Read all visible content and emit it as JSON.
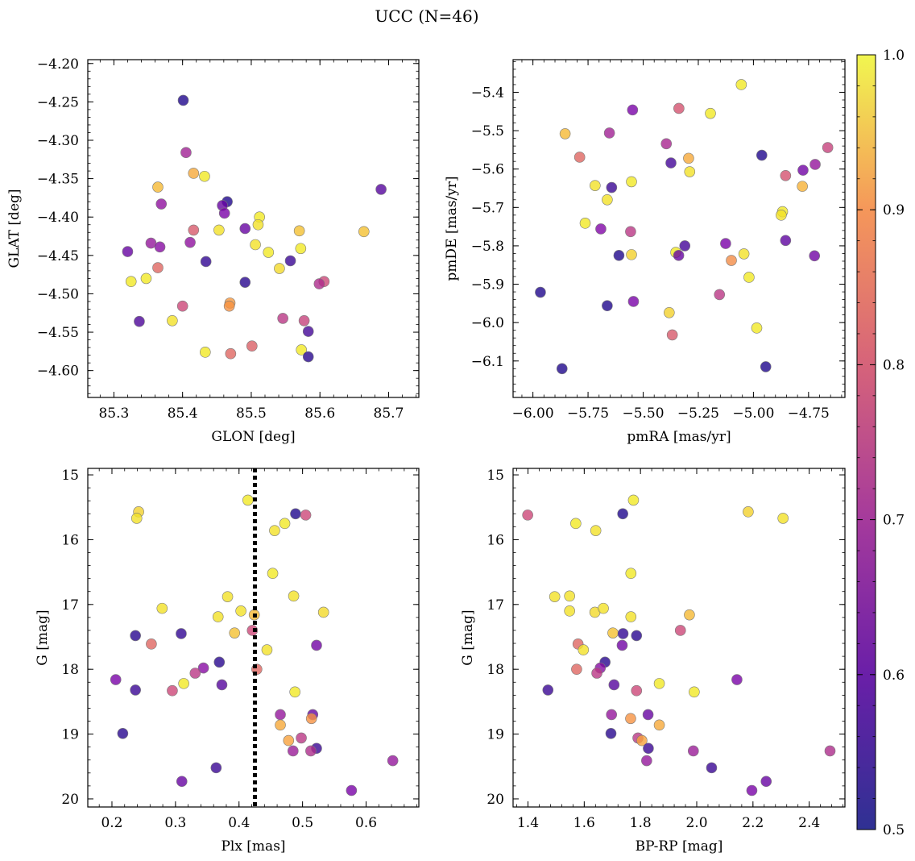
{
  "figure": {
    "title": "UCC (N=46)"
  },
  "colorbar": {
    "range": [
      0.5,
      1.0
    ],
    "ticks": [
      0.5,
      0.6,
      0.7,
      0.8,
      0.9,
      1.0
    ],
    "tick_labels": [
      "0.5",
      "0.6",
      "0.7",
      "0.8",
      "0.9",
      "1.0"
    ],
    "colormap": "plasma"
  },
  "chart_data": [
    {
      "type": "scatter",
      "xlabel": "GLON [deg]",
      "ylabel": "GLAT [deg]",
      "xlim": [
        85.262,
        85.744
      ],
      "ylim": [
        -4.635,
        -4.195
      ],
      "xticks": [
        85.3,
        85.4,
        85.5,
        85.6,
        85.7
      ],
      "xtick_labels": [
        "85.3",
        "85.4",
        "85.5",
        "85.6",
        "85.7"
      ],
      "yticks": [
        -4.2,
        -4.25,
        -4.3,
        -4.35,
        -4.4,
        -4.45,
        -4.5,
        -4.55,
        -4.6
      ],
      "ytick_labels": [
        "−4.20",
        "−4.25",
        "−4.30",
        "−4.35",
        "−4.40",
        "−4.45",
        "−4.50",
        "−4.55",
        "−4.60"
      ],
      "grid": false,
      "points": [
        {
          "x": 85.401,
          "y": -4.248,
          "c": 0.52
        },
        {
          "x": 85.405,
          "y": -4.316,
          "c": 0.68
        },
        {
          "x": 85.416,
          "y": -4.343,
          "c": 0.9
        },
        {
          "x": 85.432,
          "y": -4.347,
          "c": 0.98
        },
        {
          "x": 85.364,
          "y": -4.361,
          "c": 0.92
        },
        {
          "x": 85.689,
          "y": -4.364,
          "c": 0.58
        },
        {
          "x": 85.369,
          "y": -4.383,
          "c": 0.65
        },
        {
          "x": 85.465,
          "y": -4.38,
          "c": 0.52
        },
        {
          "x": 85.458,
          "y": -4.385,
          "c": 0.6
        },
        {
          "x": 85.461,
          "y": -4.395,
          "c": 0.62
        },
        {
          "x": 85.512,
          "y": -4.4,
          "c": 0.98
        },
        {
          "x": 85.51,
          "y": -4.41,
          "c": 0.97
        },
        {
          "x": 85.416,
          "y": -4.417,
          "c": 0.78
        },
        {
          "x": 85.453,
          "y": -4.417,
          "c": 0.97
        },
        {
          "x": 85.491,
          "y": -4.415,
          "c": 0.6
        },
        {
          "x": 85.57,
          "y": -4.418,
          "c": 0.93
        },
        {
          "x": 85.664,
          "y": -4.419,
          "c": 0.93
        },
        {
          "x": 85.411,
          "y": -4.433,
          "c": 0.65
        },
        {
          "x": 85.354,
          "y": -4.434,
          "c": 0.66
        },
        {
          "x": 85.367,
          "y": -4.439,
          "c": 0.64
        },
        {
          "x": 85.506,
          "y": -4.436,
          "c": 0.97
        },
        {
          "x": 85.572,
          "y": -4.441,
          "c": 0.98
        },
        {
          "x": 85.32,
          "y": -4.445,
          "c": 0.6
        },
        {
          "x": 85.525,
          "y": -4.446,
          "c": 0.98
        },
        {
          "x": 85.434,
          "y": -4.458,
          "c": 0.54
        },
        {
          "x": 85.557,
          "y": -4.457,
          "c": 0.55
        },
        {
          "x": 85.364,
          "y": -4.466,
          "c": 0.8
        },
        {
          "x": 85.541,
          "y": -4.467,
          "c": 0.96
        },
        {
          "x": 85.347,
          "y": -4.48,
          "c": 0.98
        },
        {
          "x": 85.325,
          "y": -4.484,
          "c": 0.98
        },
        {
          "x": 85.491,
          "y": -4.485,
          "c": 0.53
        },
        {
          "x": 85.606,
          "y": -4.484,
          "c": 0.75
        },
        {
          "x": 85.599,
          "y": -4.487,
          "c": 0.7
        },
        {
          "x": 85.469,
          "y": -4.512,
          "c": 0.88
        },
        {
          "x": 85.468,
          "y": -4.516,
          "c": 0.87
        },
        {
          "x": 85.4,
          "y": -4.516,
          "c": 0.75
        },
        {
          "x": 85.546,
          "y": -4.532,
          "c": 0.72
        },
        {
          "x": 85.577,
          "y": -4.535,
          "c": 0.74
        },
        {
          "x": 85.337,
          "y": -4.536,
          "c": 0.57
        },
        {
          "x": 85.385,
          "y": -4.535,
          "c": 0.97
        },
        {
          "x": 85.583,
          "y": -4.549,
          "c": 0.56
        },
        {
          "x": 85.501,
          "y": -4.568,
          "c": 0.79
        },
        {
          "x": 85.573,
          "y": -4.573,
          "c": 0.98
        },
        {
          "x": 85.433,
          "y": -4.576,
          "c": 0.98
        },
        {
          "x": 85.47,
          "y": -4.578,
          "c": 0.8
        },
        {
          "x": 85.583,
          "y": -4.582,
          "c": 0.53
        }
      ]
    },
    {
      "type": "scatter",
      "xlabel": "pmRA [mas/yr]",
      "ylabel": "pmDE [mas/yr]",
      "xlim": [
        -6.09,
        -4.585
      ],
      "ylim": [
        -6.195,
        -5.315
      ],
      "xticks": [
        -6.0,
        -5.75,
        -5.5,
        -5.25,
        -5.0,
        -4.75
      ],
      "xtick_labels": [
        "−6.00",
        "−5.75",
        "−5.50",
        "−5.25",
        "−5.00",
        "−4.75"
      ],
      "yticks": [
        -5.4,
        -5.5,
        -5.6,
        -5.7,
        -5.8,
        -5.9,
        -6.0,
        -6.1
      ],
      "ytick_labels": [
        "−5.4",
        "−5.5",
        "−5.6",
        "−5.7",
        "−5.8",
        "−5.9",
        "−6.0",
        "−6.1"
      ],
      "grid": false,
      "points": [
        {
          "x": -5.055,
          "y": -5.38,
          "c": 0.98
        },
        {
          "x": -5.338,
          "y": -5.442,
          "c": 0.77
        },
        {
          "x": -5.548,
          "y": -5.446,
          "c": 0.62
        },
        {
          "x": -5.195,
          "y": -5.455,
          "c": 0.98
        },
        {
          "x": -5.854,
          "y": -5.508,
          "c": 0.92
        },
        {
          "x": -5.653,
          "y": -5.506,
          "c": 0.68
        },
        {
          "x": -5.395,
          "y": -5.534,
          "c": 0.69
        },
        {
          "x": -4.663,
          "y": -5.544,
          "c": 0.74
        },
        {
          "x": -4.962,
          "y": -5.564,
          "c": 0.52
        },
        {
          "x": -5.788,
          "y": -5.569,
          "c": 0.8
        },
        {
          "x": -5.294,
          "y": -5.572,
          "c": 0.9
        },
        {
          "x": -5.374,
          "y": -5.584,
          "c": 0.56
        },
        {
          "x": -4.72,
          "y": -5.588,
          "c": 0.66
        },
        {
          "x": -4.775,
          "y": -5.603,
          "c": 0.61
        },
        {
          "x": -5.289,
          "y": -5.607,
          "c": 0.97
        },
        {
          "x": -4.854,
          "y": -5.617,
          "c": 0.77
        },
        {
          "x": -5.553,
          "y": -5.633,
          "c": 0.98
        },
        {
          "x": -5.718,
          "y": -5.643,
          "c": 0.97
        },
        {
          "x": -4.778,
          "y": -5.645,
          "c": 0.91
        },
        {
          "x": -5.643,
          "y": -5.648,
          "c": 0.55
        },
        {
          "x": -5.663,
          "y": -5.68,
          "c": 0.97
        },
        {
          "x": -4.868,
          "y": -5.711,
          "c": 0.98
        },
        {
          "x": -4.874,
          "y": -5.72,
          "c": 0.97
        },
        {
          "x": -5.763,
          "y": -5.741,
          "c": 0.98
        },
        {
          "x": -5.692,
          "y": -5.756,
          "c": 0.63
        },
        {
          "x": -5.557,
          "y": -5.763,
          "c": 0.72
        },
        {
          "x": -4.854,
          "y": -5.786,
          "c": 0.59
        },
        {
          "x": -5.126,
          "y": -5.794,
          "c": 0.62
        },
        {
          "x": -5.311,
          "y": -5.8,
          "c": 0.56
        },
        {
          "x": -5.352,
          "y": -5.817,
          "c": 0.98
        },
        {
          "x": -5.043,
          "y": -5.821,
          "c": 0.97
        },
        {
          "x": -5.553,
          "y": -5.823,
          "c": 0.95
        },
        {
          "x": -5.61,
          "y": -5.825,
          "c": 0.52
        },
        {
          "x": -5.339,
          "y": -5.825,
          "c": 0.6
        },
        {
          "x": -4.723,
          "y": -5.826,
          "c": 0.61
        },
        {
          "x": -5.1,
          "y": -5.838,
          "c": 0.86
        },
        {
          "x": -5.02,
          "y": -5.882,
          "c": 0.98
        },
        {
          "x": -5.966,
          "y": -5.921,
          "c": 0.52
        },
        {
          "x": -5.154,
          "y": -5.927,
          "c": 0.72
        },
        {
          "x": -5.544,
          "y": -5.945,
          "c": 0.62
        },
        {
          "x": -5.663,
          "y": -5.956,
          "c": 0.52
        },
        {
          "x": -5.382,
          "y": -5.974,
          "c": 0.95
        },
        {
          "x": -4.985,
          "y": -6.014,
          "c": 0.98
        },
        {
          "x": -5.368,
          "y": -6.032,
          "c": 0.78
        },
        {
          "x": -4.944,
          "y": -6.115,
          "c": 0.52
        },
        {
          "x": -5.868,
          "y": -6.12,
          "c": 0.52
        }
      ]
    },
    {
      "type": "scatter",
      "xlabel": "Plx [mas]",
      "ylabel": "G [mag]",
      "xlim": [
        0.162,
        0.683
      ],
      "ylim": [
        20.125,
        14.9
      ],
      "y_inverted": true,
      "xticks": [
        0.2,
        0.3,
        0.4,
        0.5,
        0.6
      ],
      "xtick_labels": [
        "0.2",
        "0.3",
        "0.4",
        "0.5",
        "0.6"
      ],
      "yticks": [
        15,
        16,
        17,
        18,
        19,
        20
      ],
      "ytick_labels": [
        "15",
        "16",
        "17",
        "18",
        "19",
        "20"
      ],
      "grid": false,
      "vline": {
        "x": 0.425,
        "style": "dotted"
      },
      "points": [
        {
          "x": 0.414,
          "y": 15.39,
          "c": 0.98
        },
        {
          "x": 0.242,
          "y": 15.57,
          "c": 0.95
        },
        {
          "x": 0.489,
          "y": 15.6,
          "c": 0.52
        },
        {
          "x": 0.505,
          "y": 15.62,
          "c": 0.75
        },
        {
          "x": 0.239,
          "y": 15.67,
          "c": 0.97
        },
        {
          "x": 0.472,
          "y": 15.75,
          "c": 0.98
        },
        {
          "x": 0.456,
          "y": 15.86,
          "c": 0.97
        },
        {
          "x": 0.453,
          "y": 16.52,
          "c": 0.98
        },
        {
          "x": 0.279,
          "y": 17.06,
          "c": 0.97
        },
        {
          "x": 0.382,
          "y": 16.88,
          "c": 0.97
        },
        {
          "x": 0.486,
          "y": 16.87,
          "c": 0.97
        },
        {
          "x": 0.403,
          "y": 17.1,
          "c": 0.97
        },
        {
          "x": 0.533,
          "y": 17.12,
          "c": 0.96
        },
        {
          "x": 0.367,
          "y": 17.19,
          "c": 0.97
        },
        {
          "x": 0.424,
          "y": 17.16,
          "c": 0.92
        },
        {
          "x": 0.393,
          "y": 17.44,
          "c": 0.93
        },
        {
          "x": 0.421,
          "y": 17.4,
          "c": 0.75
        },
        {
          "x": 0.237,
          "y": 17.48,
          "c": 0.53
        },
        {
          "x": 0.309,
          "y": 17.45,
          "c": 0.54
        },
        {
          "x": 0.262,
          "y": 17.61,
          "c": 0.8
        },
        {
          "x": 0.522,
          "y": 17.63,
          "c": 0.61
        },
        {
          "x": 0.444,
          "y": 17.7,
          "c": 0.97
        },
        {
          "x": 0.369,
          "y": 17.89,
          "c": 0.53
        },
        {
          "x": 0.344,
          "y": 17.98,
          "c": 0.64
        },
        {
          "x": 0.428,
          "y": 18.0,
          "c": 0.8
        },
        {
          "x": 0.331,
          "y": 18.06,
          "c": 0.72
        },
        {
          "x": 0.206,
          "y": 18.16,
          "c": 0.62
        },
        {
          "x": 0.313,
          "y": 18.22,
          "c": 0.98
        },
        {
          "x": 0.373,
          "y": 18.24,
          "c": 0.58
        },
        {
          "x": 0.237,
          "y": 18.32,
          "c": 0.55
        },
        {
          "x": 0.295,
          "y": 18.33,
          "c": 0.75
        },
        {
          "x": 0.488,
          "y": 18.35,
          "c": 0.98
        },
        {
          "x": 0.465,
          "y": 18.7,
          "c": 0.66
        },
        {
          "x": 0.516,
          "y": 18.7,
          "c": 0.6
        },
        {
          "x": 0.514,
          "y": 18.76,
          "c": 0.87
        },
        {
          "x": 0.465,
          "y": 18.86,
          "c": 0.9
        },
        {
          "x": 0.217,
          "y": 18.99,
          "c": 0.53
        },
        {
          "x": 0.498,
          "y": 19.06,
          "c": 0.72
        },
        {
          "x": 0.478,
          "y": 19.1,
          "c": 0.89
        },
        {
          "x": 0.522,
          "y": 19.22,
          "c": 0.55
        },
        {
          "x": 0.485,
          "y": 19.26,
          "c": 0.67
        },
        {
          "x": 0.513,
          "y": 19.26,
          "c": 0.7
        },
        {
          "x": 0.642,
          "y": 19.41,
          "c": 0.66
        },
        {
          "x": 0.364,
          "y": 19.52,
          "c": 0.55
        },
        {
          "x": 0.31,
          "y": 19.73,
          "c": 0.6
        },
        {
          "x": 0.577,
          "y": 19.87,
          "c": 0.62
        }
      ]
    },
    {
      "type": "scatter",
      "xlabel": "BP-RP [mag]",
      "ylabel": "G [mag]",
      "xlim": [
        1.347,
        2.527
      ],
      "ylim": [
        20.125,
        14.9
      ],
      "y_inverted": true,
      "xticks": [
        1.4,
        1.6,
        1.8,
        2.0,
        2.2,
        2.4
      ],
      "xtick_labels": [
        "1.4",
        "1.6",
        "1.8",
        "2.0",
        "2.2",
        "2.4"
      ],
      "yticks": [
        15,
        16,
        17,
        18,
        19,
        20
      ],
      "ytick_labels": [
        "15",
        "16",
        "17",
        "18",
        "19",
        "20"
      ],
      "grid": false,
      "points": [
        {
          "x": 1.775,
          "y": 15.39,
          "c": 0.98
        },
        {
          "x": 1.399,
          "y": 15.62,
          "c": 0.75
        },
        {
          "x": 1.737,
          "y": 15.6,
          "c": 0.52
        },
        {
          "x": 2.183,
          "y": 15.57,
          "c": 0.95
        },
        {
          "x": 2.307,
          "y": 15.67,
          "c": 0.97
        },
        {
          "x": 1.57,
          "y": 15.75,
          "c": 0.98
        },
        {
          "x": 1.641,
          "y": 15.86,
          "c": 0.97
        },
        {
          "x": 1.766,
          "y": 16.52,
          "c": 0.98
        },
        {
          "x": 1.495,
          "y": 16.88,
          "c": 0.97
        },
        {
          "x": 1.548,
          "y": 16.87,
          "c": 0.97
        },
        {
          "x": 1.548,
          "y": 17.1,
          "c": 0.97
        },
        {
          "x": 1.638,
          "y": 17.12,
          "c": 0.96
        },
        {
          "x": 1.668,
          "y": 17.06,
          "c": 0.97
        },
        {
          "x": 1.766,
          "y": 17.19,
          "c": 0.97
        },
        {
          "x": 1.974,
          "y": 17.16,
          "c": 0.92
        },
        {
          "x": 1.942,
          "y": 17.4,
          "c": 0.75
        },
        {
          "x": 1.702,
          "y": 17.44,
          "c": 0.93
        },
        {
          "x": 1.738,
          "y": 17.45,
          "c": 0.54
        },
        {
          "x": 1.786,
          "y": 17.48,
          "c": 0.53
        },
        {
          "x": 1.578,
          "y": 17.61,
          "c": 0.8
        },
        {
          "x": 1.735,
          "y": 17.63,
          "c": 0.61
        },
        {
          "x": 1.597,
          "y": 17.7,
          "c": 0.97
        },
        {
          "x": 1.674,
          "y": 17.89,
          "c": 0.53
        },
        {
          "x": 1.657,
          "y": 17.98,
          "c": 0.64
        },
        {
          "x": 1.573,
          "y": 18.0,
          "c": 0.8
        },
        {
          "x": 1.645,
          "y": 18.06,
          "c": 0.72
        },
        {
          "x": 2.143,
          "y": 18.16,
          "c": 0.62
        },
        {
          "x": 1.867,
          "y": 18.22,
          "c": 0.98
        },
        {
          "x": 1.706,
          "y": 18.24,
          "c": 0.58
        },
        {
          "x": 1.471,
          "y": 18.32,
          "c": 0.55
        },
        {
          "x": 1.786,
          "y": 18.33,
          "c": 0.75
        },
        {
          "x": 1.991,
          "y": 18.35,
          "c": 0.98
        },
        {
          "x": 1.697,
          "y": 18.7,
          "c": 0.66
        },
        {
          "x": 1.827,
          "y": 18.7,
          "c": 0.6
        },
        {
          "x": 1.765,
          "y": 18.76,
          "c": 0.87
        },
        {
          "x": 1.867,
          "y": 18.86,
          "c": 0.9
        },
        {
          "x": 1.695,
          "y": 18.99,
          "c": 0.53
        },
        {
          "x": 1.791,
          "y": 19.06,
          "c": 0.72
        },
        {
          "x": 1.805,
          "y": 19.1,
          "c": 0.89
        },
        {
          "x": 1.828,
          "y": 19.22,
          "c": 0.55
        },
        {
          "x": 1.988,
          "y": 19.26,
          "c": 0.67
        },
        {
          "x": 2.474,
          "y": 19.26,
          "c": 0.7
        },
        {
          "x": 1.822,
          "y": 19.41,
          "c": 0.66
        },
        {
          "x": 2.053,
          "y": 19.52,
          "c": 0.55
        },
        {
          "x": 2.247,
          "y": 19.73,
          "c": 0.6
        },
        {
          "x": 2.196,
          "y": 19.87,
          "c": 0.62
        }
      ]
    }
  ]
}
